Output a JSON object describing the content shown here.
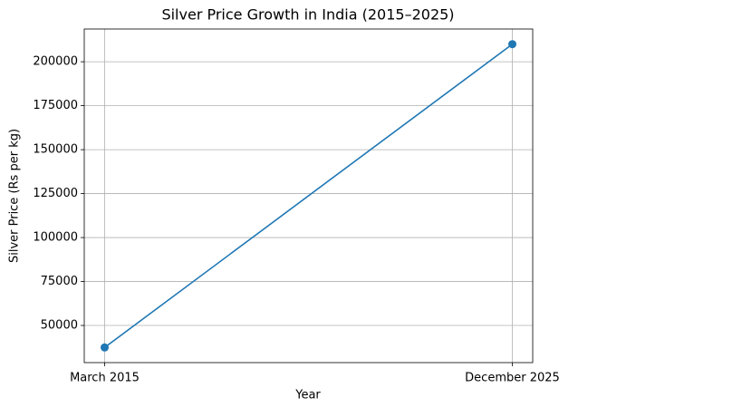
{
  "chart_data": {
    "type": "line",
    "title": "Silver Price Growth in India (2015–2025)",
    "x_label": "Year",
    "y_label": "Silver Price (Rs per kg)",
    "categories": [
      "March 2015",
      "December 2025"
    ],
    "series": [
      {
        "name": "Silver Price",
        "color": "#1f77b4",
        "values": [
          37500,
          210000
        ]
      }
    ],
    "ylim": [
      28875,
      218625
    ],
    "yticks": [
      50000,
      75000,
      100000,
      125000,
      150000,
      175000,
      200000
    ],
    "grid": true,
    "marker": "circle"
  }
}
